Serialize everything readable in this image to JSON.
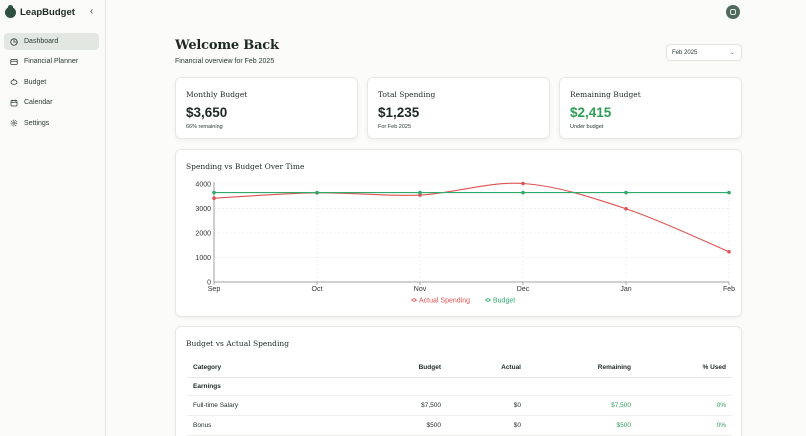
{
  "app": {
    "name": "LeapBudget",
    "collapse_label": "‹"
  },
  "sidebar": {
    "items": [
      {
        "label": "Dashboard",
        "icon": "pie-chart-icon",
        "active": true
      },
      {
        "label": "Financial Planner",
        "icon": "wallet-icon",
        "active": false
      },
      {
        "label": "Budget",
        "icon": "piggy-bank-icon",
        "active": false
      },
      {
        "label": "Calendar",
        "icon": "calendar-icon",
        "active": false
      },
      {
        "label": "Settings",
        "icon": "gear-icon",
        "active": false
      }
    ]
  },
  "header": {
    "title": "Welcome Back",
    "subtitle": "Financial overview for Feb 2025",
    "month_select": "Feb 2025"
  },
  "cards": {
    "monthly_budget": {
      "title": "Monthly Budget",
      "value": "$3,650",
      "note": "66% remaining"
    },
    "total_spending": {
      "title": "Total Spending",
      "value": "$1,235",
      "note": "For Feb 2025"
    },
    "remaining_budget": {
      "title": "Remaining Budget",
      "value": "$2,415",
      "note": "Under budget"
    }
  },
  "colors": {
    "actual": "#e05252",
    "budget": "#2eaa6a",
    "green_text": "#2e9e55",
    "accent_nav": "#e3e7e2"
  },
  "chart_data": {
    "type": "line",
    "title": "Spending vs Budget Over Time",
    "categories": [
      "Sep",
      "Oct",
      "Nov",
      "Dec",
      "Jan",
      "Feb"
    ],
    "yticks": [
      "0",
      "1000",
      "2000",
      "3000",
      "4000"
    ],
    "ylim": [
      0,
      4000
    ],
    "series": [
      {
        "name": "Actual Spending",
        "values": [
          3420,
          3640,
          3550,
          4020,
          2990,
          1235
        ]
      },
      {
        "name": "Budget",
        "values": [
          3650,
          3650,
          3650,
          3650,
          3650,
          3650
        ]
      }
    ],
    "legend": "bottom-center",
    "grid": true
  },
  "table": {
    "title": "Budget vs Actual Spending",
    "headers": [
      "Category",
      "Budget",
      "Actual",
      "Remaining",
      "% Used"
    ],
    "group": "Earnings",
    "rows": [
      {
        "category": "Full-time Salary",
        "budget": "$7,500",
        "actual": "$0",
        "remaining": "$7,500",
        "used": "0%"
      },
      {
        "category": "Bonus",
        "budget": "$500",
        "actual": "$0",
        "remaining": "$500",
        "used": "0%"
      }
    ]
  }
}
